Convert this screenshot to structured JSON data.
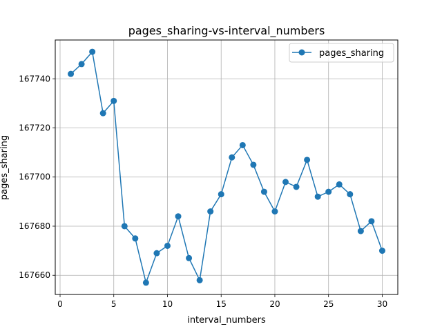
{
  "chart_data": {
    "type": "line",
    "title": "pages_sharing-vs-interval_numbers",
    "xlabel": "interval_numbers",
    "ylabel": "pages_sharing",
    "xlim": [
      -0.45,
      31.45
    ],
    "ylim": [
      167652.2,
      167755.8
    ],
    "x_ticks": [
      0,
      5,
      10,
      15,
      20,
      25,
      30
    ],
    "y_ticks": [
      167660,
      167680,
      167700,
      167720,
      167740
    ],
    "grid": true,
    "legend": "upper right",
    "series": [
      {
        "name": "pages_sharing",
        "color": "#1f77b4",
        "marker": "circle",
        "x": [
          1,
          2,
          3,
          4,
          5,
          6,
          7,
          8,
          9,
          10,
          11,
          12,
          13,
          14,
          15,
          16,
          17,
          18,
          19,
          20,
          21,
          22,
          23,
          24,
          25,
          26,
          27,
          28,
          29,
          30
        ],
        "y": [
          167742,
          167746,
          167751,
          167726,
          167731,
          167680,
          167675,
          167657,
          167669,
          167672,
          167684,
          167667,
          167658,
          167686,
          167693,
          167708,
          167713,
          167705,
          167694,
          167686,
          167698,
          167696,
          167707,
          167692,
          167694,
          167697,
          167693,
          167678,
          167682,
          167670
        ]
      }
    ]
  }
}
